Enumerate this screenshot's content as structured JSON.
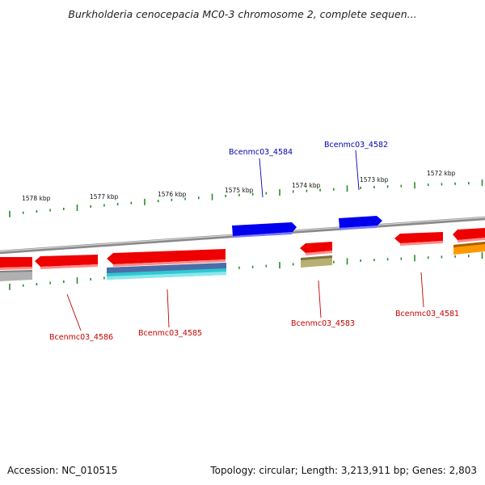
{
  "title": "Burkholderia cenocepacia MC0-3 chromosome 2, complete sequen...",
  "footer": {
    "accession": "Accession: NC_010515",
    "stats": "Topology: circular; Length: 3,213,911 bp; Genes: 2,803"
  },
  "scale_labels": [
    "1578 kbp",
    "1577 kbp",
    "1576 kbp",
    "1575 kbp",
    "1574 kbp",
    "1573 kbp",
    "1572 kbp"
  ],
  "gene_labels": {
    "forward": [
      "Bcenmc03_4584",
      "Bcenmc03_4582"
    ],
    "reverse": [
      "Bcenmc03_4586",
      "Bcenmc03_4585",
      "Bcenmc03_4583",
      "Bcenmc03_4581"
    ]
  },
  "colors": {
    "forward_gene": "#0000ee",
    "reverse_gene": "#ee0000",
    "backbone": "#8a8a8a",
    "ticks": "#2a8a2a",
    "label_blue": "#0000b4",
    "label_red": "#c80000",
    "rna_cyan": "#30c8d0",
    "olive": "#b8b070",
    "orange": "#ff9900",
    "grey_feature": "#b0b0b0"
  }
}
